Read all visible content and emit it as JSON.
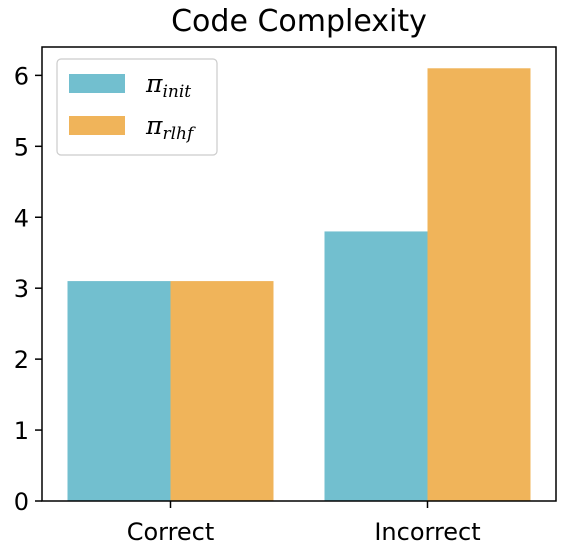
{
  "chart_data": {
    "type": "bar",
    "title": "Code Complexity",
    "categories": [
      "Correct",
      "Incorrect"
    ],
    "series": [
      {
        "name": "π_init",
        "values": [
          3.1,
          3.8
        ],
        "color": "#72bfcf"
      },
      {
        "name": "π_rlhf",
        "values": [
          3.1,
          6.1
        ],
        "color": "#f0b45a"
      }
    ],
    "yticks": [
      0,
      1,
      2,
      3,
      4,
      5,
      6
    ],
    "ylim": [
      0,
      6.4
    ],
    "xlabel": "",
    "ylabel": "",
    "grid": false,
    "legend": {
      "placement": "top-left",
      "entries": [
        {
          "symbol": "π",
          "subscript": "init"
        },
        {
          "symbol": "π",
          "subscript": "rlhf"
        }
      ]
    }
  }
}
